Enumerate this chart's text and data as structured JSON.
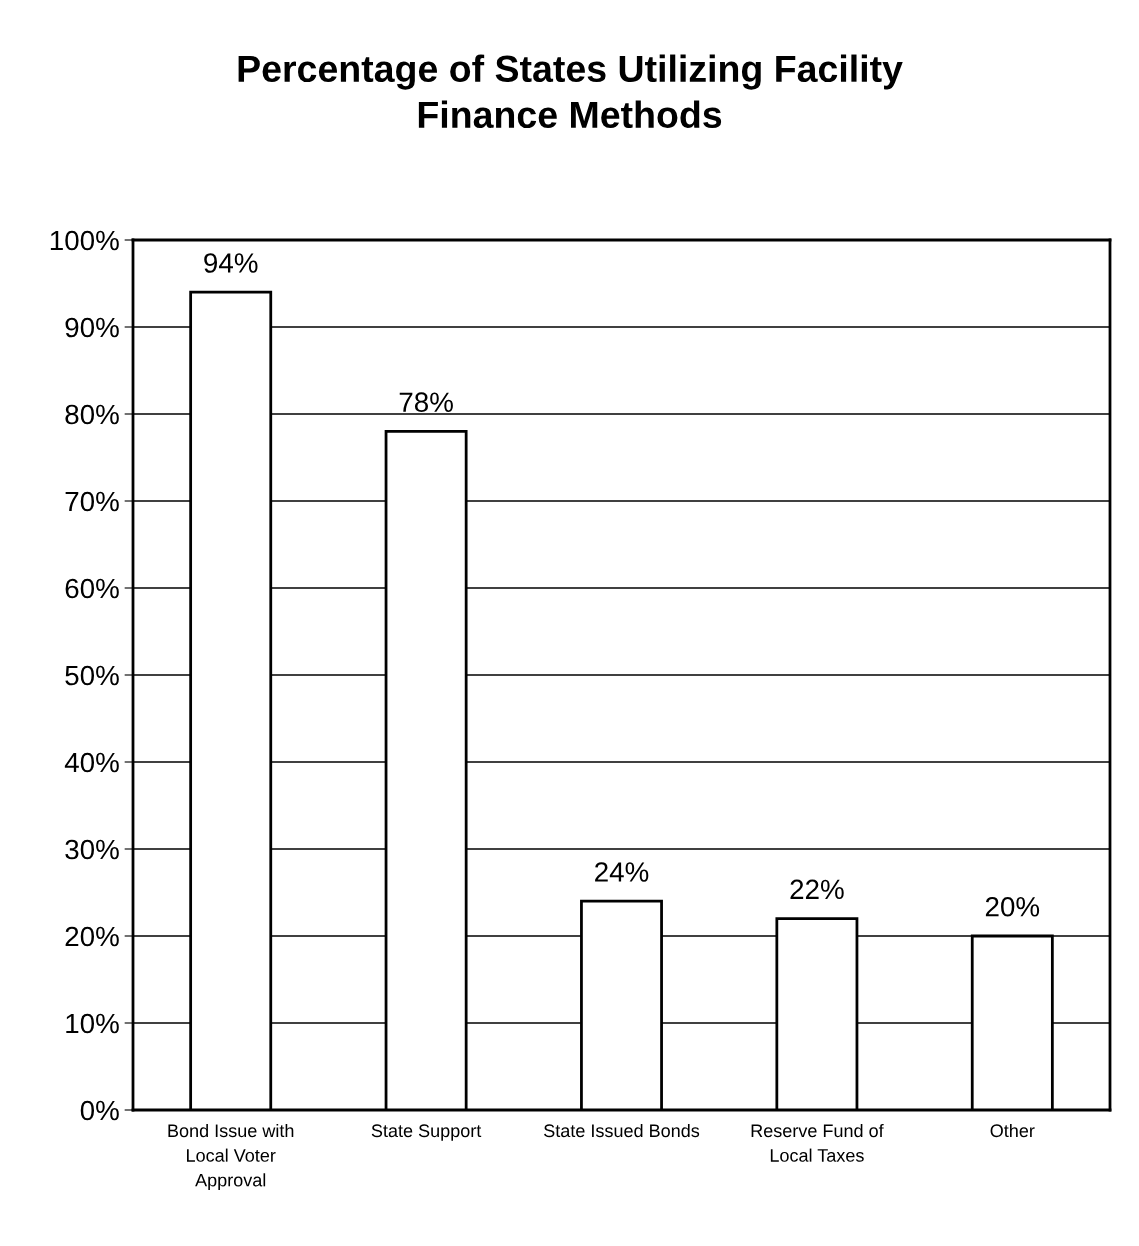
{
  "chart_data": {
    "type": "bar",
    "title": "Percentage of States Utilizing Facility\nFinance Methods",
    "categories": [
      "Bond Issue with\nLocal Voter\nApproval",
      "State Support",
      "State Issued Bonds",
      "Reserve Fund of\nLocal Taxes",
      "Other"
    ],
    "values": [
      94,
      78,
      24,
      22,
      20
    ],
    "value_labels": [
      "94%",
      "78%",
      "24%",
      "22%",
      "20%"
    ],
    "color": "#ffffff",
    "ylim": [
      0,
      100
    ],
    "yticks": [
      {
        "value": 0,
        "label": "0%"
      },
      {
        "value": 10,
        "label": "10%"
      },
      {
        "value": 20,
        "label": "20%"
      },
      {
        "value": 30,
        "label": "30%"
      },
      {
        "value": 40,
        "label": "40%"
      },
      {
        "value": 50,
        "label": "50%"
      },
      {
        "value": 60,
        "label": "60%"
      },
      {
        "value": 70,
        "label": "70%"
      },
      {
        "value": 80,
        "label": "80%"
      },
      {
        "value": 90,
        "label": "90%"
      },
      {
        "value": 100,
        "label": "100%"
      }
    ],
    "grid": "y",
    "legend": false
  }
}
